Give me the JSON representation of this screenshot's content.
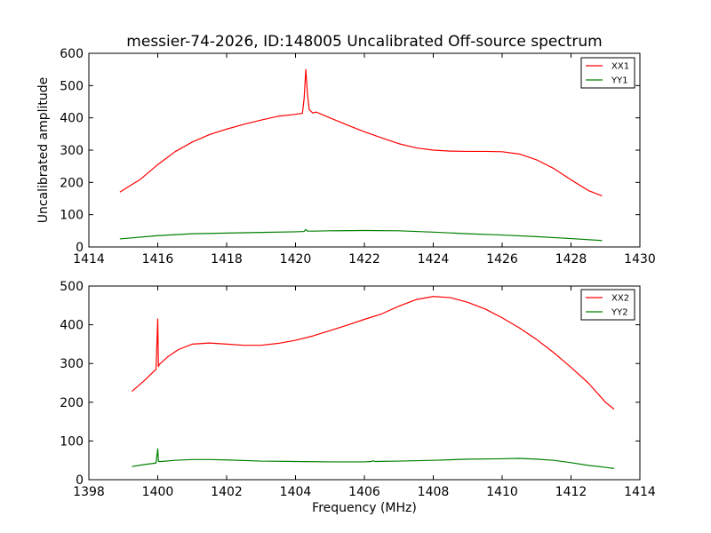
{
  "figure": {
    "title": "messier-74-2026, ID:148005 Uncalibrated Off-source spectrum"
  },
  "chart_data": [
    {
      "type": "line",
      "title": "messier-74-2026, ID:148005 Uncalibrated Off-source spectrum",
      "xlabel": "",
      "ylabel": "Uncalibrated amplitude",
      "xlim": [
        1414,
        1430
      ],
      "ylim": [
        0,
        600
      ],
      "xticks": [
        "1414",
        "1416",
        "1418",
        "1420",
        "1422",
        "1424",
        "1426",
        "1428",
        "1430"
      ],
      "yticks": [
        "0",
        "100",
        "200",
        "300",
        "400",
        "500",
        "600"
      ],
      "grid": false,
      "legend": "top-right",
      "series": [
        {
          "name": "XX1",
          "color": "#ff0000",
          "x": [
            1414.9,
            1415.5,
            1416.0,
            1416.5,
            1417.0,
            1417.5,
            1418.0,
            1418.5,
            1419.0,
            1419.5,
            1420.0,
            1420.2,
            1420.25,
            1420.3,
            1420.35,
            1420.4,
            1420.5,
            1420.6,
            1421.0,
            1421.5,
            1422.0,
            1422.5,
            1423.0,
            1423.5,
            1424.0,
            1424.5,
            1425.0,
            1425.5,
            1426.0,
            1426.5,
            1427.0,
            1427.5,
            1428.0,
            1428.5,
            1428.9
          ],
          "y": [
            170,
            210,
            255,
            295,
            325,
            348,
            365,
            380,
            393,
            405,
            411,
            414,
            460,
            550,
            470,
            425,
            415,
            418,
            400,
            378,
            357,
            338,
            320,
            307,
            300,
            297,
            296,
            296,
            295,
            288,
            270,
            243,
            208,
            175,
            158
          ]
        },
        {
          "name": "YY1",
          "color": "#008000",
          "x": [
            1414.9,
            1416.0,
            1417.0,
            1418.0,
            1419.0,
            1420.0,
            1420.25,
            1420.3,
            1420.35,
            1420.5,
            1421.0,
            1422.0,
            1423.0,
            1424.0,
            1425.0,
            1426.0,
            1427.0,
            1428.0,
            1428.9
          ],
          "y": [
            25,
            35,
            41,
            43,
            45,
            47,
            48,
            54,
            49,
            49,
            50,
            51,
            50,
            46,
            41,
            37,
            32,
            26,
            20
          ]
        }
      ]
    },
    {
      "type": "line",
      "title": "",
      "xlabel": "Frequency (MHz)",
      "ylabel": "",
      "xlim": [
        1398,
        1414
      ],
      "ylim": [
        0,
        500
      ],
      "xticks": [
        "1398",
        "1400",
        "1402",
        "1404",
        "1406",
        "1408",
        "1410",
        "1412",
        "1414"
      ],
      "yticks": [
        "0",
        "100",
        "200",
        "300",
        "400",
        "500"
      ],
      "grid": false,
      "legend": "top-right",
      "series": [
        {
          "name": "XX2",
          "color": "#ff0000",
          "x": [
            1399.25,
            1399.6,
            1399.95,
            1400.0,
            1400.02,
            1400.05,
            1400.3,
            1400.6,
            1401.0,
            1401.5,
            1402.0,
            1402.5,
            1403.0,
            1403.5,
            1404.0,
            1404.5,
            1405.0,
            1405.5,
            1406.0,
            1406.5,
            1407.0,
            1407.5,
            1408.0,
            1408.5,
            1409.0,
            1409.5,
            1410.0,
            1410.5,
            1411.0,
            1411.5,
            1412.0,
            1412.5,
            1413.0,
            1413.25
          ],
          "y": [
            228,
            255,
            285,
            415,
            292,
            298,
            318,
            336,
            350,
            353,
            350,
            347,
            347,
            352,
            360,
            371,
            385,
            399,
            414,
            428,
            448,
            465,
            473,
            470,
            458,
            441,
            418,
            392,
            362,
            328,
            290,
            250,
            200,
            182
          ]
        },
        {
          "name": "YY2",
          "color": "#008000",
          "x": [
            1399.25,
            1399.6,
            1399.95,
            1400.0,
            1400.02,
            1400.1,
            1400.5,
            1401.0,
            1401.5,
            1402.0,
            1403.0,
            1404.0,
            1405.0,
            1406.0,
            1406.2,
            1406.25,
            1406.3,
            1407.0,
            1408.0,
            1409.0,
            1410.0,
            1410.5,
            1411.0,
            1411.5,
            1412.0,
            1412.5,
            1413.0,
            1413.25
          ],
          "y": [
            34,
            39,
            43,
            80,
            47,
            47,
            50,
            52,
            52,
            51,
            48,
            47,
            46,
            46,
            47,
            49,
            47,
            48,
            50,
            53,
            54,
            55,
            53,
            50,
            44,
            37,
            32,
            29
          ]
        }
      ]
    }
  ]
}
